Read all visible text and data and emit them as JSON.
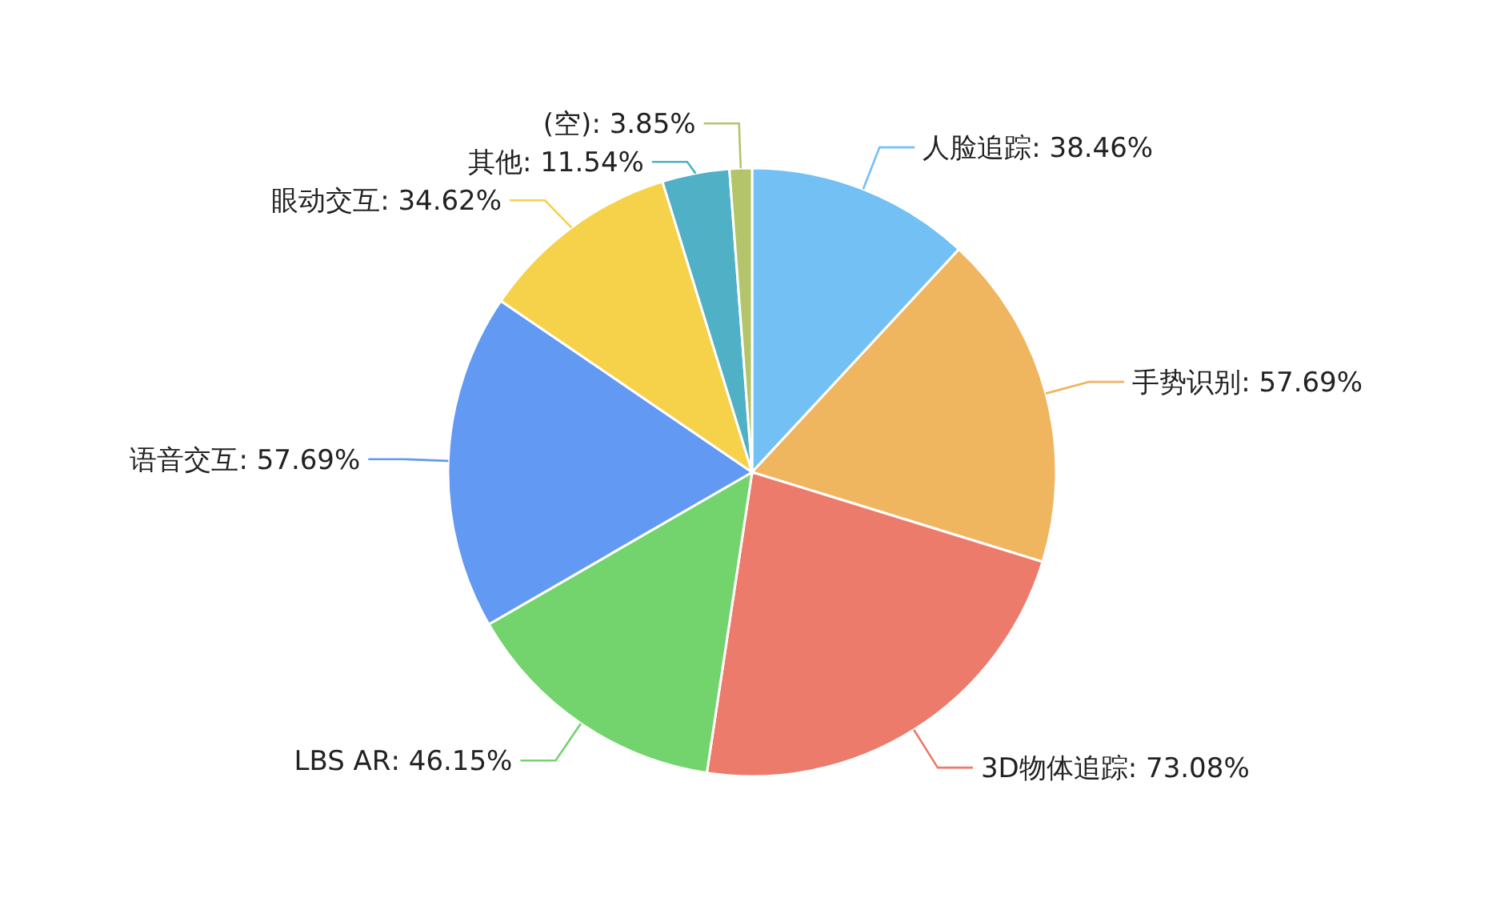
{
  "chart_data": {
    "type": "pie",
    "categories": [
      "人脸追踪",
      "手势识别",
      "3D物体追踪",
      "LBS AR",
      "语音交互",
      "眼动交互",
      "其他",
      "(空)"
    ],
    "values": [
      38.46,
      57.69,
      73.08,
      46.15,
      57.69,
      34.62,
      11.54,
      3.85
    ],
    "value_labels": [
      ": 38.46%",
      ": 57.69%",
      ": 73.08%",
      ": 46.15%",
      ": 57.69%",
      ": 34.62%",
      ": 11.54%",
      ": 3.85%"
    ],
    "colors": [
      "#73c0f5",
      "#f0b55f",
      "#ec7b6b",
      "#73d46e",
      "#6199f3",
      "#f6d24a",
      "#4fb0c6",
      "#b3c46a"
    ]
  }
}
